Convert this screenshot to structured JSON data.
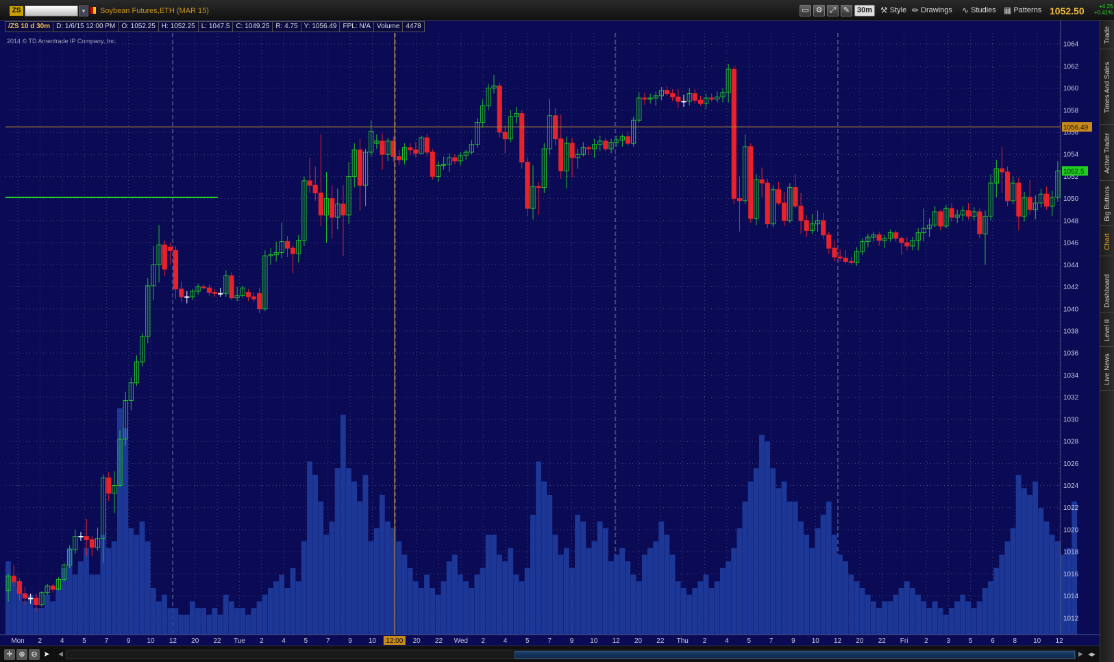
{
  "titlebar": {
    "symbol_badge": "ZS",
    "symbol_input": "",
    "description": "Soybean Futures,ETH (MAR 15)",
    "aggregation": "30m",
    "style_label": "Style",
    "drawings_label": "Drawings",
    "studies_label": "Studies",
    "patterns_label": "Patterns",
    "last_price": "1052.50",
    "net_change": "+4.25",
    "pct_change": "+0.41%"
  },
  "infobar": {
    "symbol_period": "/ZS 10 d 30m",
    "date": "D: 1/6/15 12:00 PM",
    "open": "O: 1052.25",
    "high": "H: 1052.25",
    "low": "L: 1047.5",
    "close": "C: 1049.25",
    "range": "R: 4.75",
    "y": "Y: 1056.49",
    "fpl": "FPL: N/A",
    "volume_label": "Volume",
    "volume_value": "4478"
  },
  "copyright": "2014 © TD Ameritrade IP Company, Inc.",
  "side_tabs": [
    "Trade",
    "Times And Sales",
    "Active Trader",
    "Big Buttons",
    "Chart",
    "Dashboard",
    "Level II",
    "Live News"
  ],
  "side_active": "Chart",
  "colors": {
    "background": "#0a0a55",
    "up": "#22c22a",
    "down": "#e8222a",
    "volume": "#1e3a9a",
    "grid": "#4a4a88",
    "axis_text": "#c9c9d9",
    "cursor": "#b58a2e",
    "price_badge": "#22cc22"
  },
  "chart_data": {
    "type": "candlestick",
    "ylim": [
      1010.5,
      1065
    ],
    "y_ticks": [
      1012,
      1014,
      1016,
      1018,
      1020,
      1022,
      1024,
      1026,
      1028,
      1030,
      1032,
      1034,
      1036,
      1038,
      1040,
      1042,
      1044,
      1046,
      1048,
      1050,
      1052,
      1054,
      1056,
      1058,
      1060,
      1062,
      1064
    ],
    "x_labels": [
      "Mon",
      "2",
      "4",
      "5",
      "7",
      "9",
      "10",
      "12",
      "20",
      "22",
      "Tue",
      "2",
      "4",
      "5",
      "7",
      "9",
      "10",
      "12:00",
      "20",
      "22",
      "Wed",
      "2",
      "4",
      "5",
      "7",
      "9",
      "10",
      "12",
      "20",
      "22",
      "Thu",
      "2",
      "4",
      "5",
      "7",
      "9",
      "10",
      "12",
      "20",
      "22",
      "Fri",
      "2",
      "3",
      "5",
      "6",
      "8",
      "10",
      "12"
    ],
    "cursor_price": "1056.49",
    "last_price": "1052.5",
    "cursor_x_label": "12:00",
    "horizontal_line_price": 1050.1,
    "candles": [
      [
        1014.5,
        1016.0,
        1013.5,
        1015.8
      ],
      [
        1015.8,
        1016.8,
        1014.9,
        1015.3
      ],
      [
        1015.3,
        1015.6,
        1013.6,
        1014.2
      ],
      [
        1014.2,
        1014.8,
        1013.2,
        1013.8
      ],
      [
        1013.8,
        1014.2,
        1013.3,
        1013.8
      ],
      [
        1013.8,
        1014.2,
        1012.6,
        1013.2
      ],
      [
        1013.2,
        1014.4,
        1013.0,
        1014.3
      ],
      [
        1014.3,
        1015.1,
        1014.1,
        1014.9
      ],
      [
        1014.9,
        1015.1,
        1014.3,
        1014.6
      ],
      [
        1014.6,
        1015.7,
        1014.5,
        1015.5
      ],
      [
        1015.5,
        1017.0,
        1015.3,
        1016.8
      ],
      [
        1016.8,
        1018.6,
        1016.5,
        1018.2
      ],
      [
        1018.2,
        1020.0,
        1017.8,
        1019.4
      ],
      [
        1019.4,
        1019.8,
        1019.0,
        1019.4
      ],
      [
        1019.4,
        1021.0,
        1017.6,
        1019.1
      ],
      [
        1019.1,
        1019.4,
        1017.6,
        1018.4
      ],
      [
        1018.4,
        1020.2,
        1018.1,
        1019.2
      ],
      [
        1019.2,
        1025.0,
        1017.0,
        1024.7
      ],
      [
        1024.7,
        1025.2,
        1022.6,
        1023.3
      ],
      [
        1023.3,
        1025.3,
        1021.5,
        1024.0
      ],
      [
        1024.0,
        1029.0,
        1023.9,
        1028.2
      ],
      [
        1028.2,
        1032.5,
        1027.6,
        1031.7
      ],
      [
        1031.7,
        1033.8,
        1030.8,
        1033.3
      ],
      [
        1033.3,
        1035.8,
        1033.0,
        1035.2
      ],
      [
        1035.2,
        1037.8,
        1034.8,
        1037.5
      ],
      [
        1037.5,
        1042.8,
        1036.9,
        1042.1
      ],
      [
        1042.1,
        1045.7,
        1040.8,
        1044.0
      ],
      [
        1044.0,
        1047.6,
        1042.4,
        1045.8
      ],
      [
        1045.8,
        1046.2,
        1043.0,
        1043.6
      ],
      [
        1045.6,
        1046.0,
        1044.0,
        1045.3
      ],
      [
        1045.3,
        1045.7,
        1040.9,
        1041.8
      ],
      [
        1041.8,
        1042.5,
        1040.6,
        1041.1
      ],
      [
        1041.1,
        1041.6,
        1040.5,
        1041.1
      ],
      [
        1041.1,
        1041.8,
        1040.8,
        1041.6
      ],
      [
        1041.6,
        1042.3,
        1041.3,
        1042.0
      ],
      [
        1042.0,
        1042.2,
        1041.8,
        1041.9
      ],
      [
        1041.9,
        1042.2,
        1041.2,
        1041.5
      ],
      [
        1041.5,
        1041.8,
        1041.1,
        1041.4
      ],
      [
        1041.4,
        1041.9,
        1041.1,
        1041.4
      ],
      [
        1041.4,
        1043.5,
        1041.1,
        1043.0
      ],
      [
        1043.0,
        1043.3,
        1040.8,
        1041.0
      ],
      [
        1041.0,
        1042.0,
        1040.7,
        1041.2
      ],
      [
        1041.2,
        1042.1,
        1041.0,
        1041.9
      ],
      [
        1041.5,
        1041.8,
        1040.7,
        1041.1
      ],
      [
        1041.1,
        1041.5,
        1040.6,
        1040.9
      ],
      [
        1041.4,
        1041.9,
        1039.6,
        1040.0
      ],
      [
        1040.0,
        1045.3,
        1039.8,
        1044.8
      ],
      [
        1044.8,
        1045.5,
        1044.0,
        1044.9
      ],
      [
        1044.9,
        1046.1,
        1044.3,
        1045.1
      ],
      [
        1045.1,
        1047.8,
        1044.6,
        1046.1
      ],
      [
        1046.1,
        1046.6,
        1044.7,
        1045.5
      ],
      [
        1045.5,
        1045.8,
        1043.2,
        1045.0
      ],
      [
        1045.0,
        1046.7,
        1044.2,
        1046.2
      ],
      [
        1046.2,
        1052.0,
        1045.7,
        1051.6
      ],
      [
        1051.6,
        1053.7,
        1050.5,
        1051.2
      ],
      [
        1051.2,
        1052.9,
        1049.8,
        1050.5
      ],
      [
        1050.5,
        1055.8,
        1047.5,
        1048.5
      ],
      [
        1048.5,
        1052.4,
        1046.0,
        1050.0
      ],
      [
        1050.0,
        1051.2,
        1046.4,
        1048.3
      ],
      [
        1048.3,
        1050.9,
        1047.2,
        1049.5
      ],
      [
        1049.5,
        1051.2,
        1044.8,
        1048.5
      ],
      [
        1048.5,
        1053.3,
        1047.7,
        1052.0
      ],
      [
        1052.0,
        1055.0,
        1051.0,
        1054.4
      ],
      [
        1054.4,
        1055.4,
        1048.9,
        1051.2
      ],
      [
        1051.2,
        1054.5,
        1049.3,
        1054.2
      ],
      [
        1054.2,
        1057.1,
        1053.8,
        1056.1
      ],
      [
        1055.0,
        1055.8,
        1054.5,
        1055.2
      ],
      [
        1055.2,
        1055.9,
        1052.6,
        1054.0
      ],
      [
        1054.0,
        1055.5,
        1053.4,
        1055.2
      ],
      [
        1055.2,
        1055.6,
        1053.3,
        1053.8
      ],
      [
        1053.8,
        1054.4,
        1053.0,
        1053.5
      ],
      [
        1053.5,
        1055.0,
        1053.1,
        1054.6
      ],
      [
        1054.6,
        1055.0,
        1053.9,
        1054.4
      ],
      [
        1054.4,
        1055.1,
        1053.7,
        1054.1
      ],
      [
        1054.1,
        1055.7,
        1054.0,
        1055.5
      ],
      [
        1055.5,
        1055.8,
        1053.8,
        1054.2
      ],
      [
        1054.2,
        1054.5,
        1051.7,
        1052.0
      ],
      [
        1052.0,
        1053.4,
        1051.5,
        1053.0
      ],
      [
        1053.0,
        1053.8,
        1052.6,
        1053.1
      ],
      [
        1053.1,
        1054.1,
        1052.4,
        1053.7
      ],
      [
        1053.7,
        1054.0,
        1053.1,
        1053.4
      ],
      [
        1053.4,
        1054.2,
        1053.0,
        1053.9
      ],
      [
        1053.9,
        1054.4,
        1053.5,
        1054.2
      ],
      [
        1054.2,
        1055.3,
        1054.0,
        1054.9
      ],
      [
        1054.9,
        1057.3,
        1054.6,
        1056.9
      ],
      [
        1056.9,
        1059.0,
        1056.4,
        1058.4
      ],
      [
        1058.4,
        1060.4,
        1058.0,
        1060.0
      ],
      [
        1060.0,
        1061.2,
        1059.5,
        1060.2
      ],
      [
        1060.2,
        1060.5,
        1055.5,
        1056.0
      ],
      [
        1056.0,
        1056.6,
        1054.1,
        1055.4
      ],
      [
        1055.4,
        1058.0,
        1055.1,
        1057.4
      ],
      [
        1057.4,
        1058.3,
        1056.8,
        1057.7
      ],
      [
        1057.7,
        1058.0,
        1052.7,
        1053.3
      ],
      [
        1053.3,
        1053.7,
        1048.4,
        1049.1
      ],
      [
        1049.1,
        1053.0,
        1048.1,
        1051.1
      ],
      [
        1051.1,
        1051.5,
        1048.5,
        1051.0
      ],
      [
        1051.0,
        1055.0,
        1050.5,
        1054.5
      ],
      [
        1054.5,
        1059.0,
        1054.0,
        1057.5
      ],
      [
        1057.5,
        1058.2,
        1054.8,
        1055.4
      ],
      [
        1055.4,
        1057.6,
        1051.8,
        1052.5
      ],
      [
        1052.5,
        1055.6,
        1050.9,
        1055.0
      ],
      [
        1055.0,
        1055.5,
        1051.9,
        1053.7
      ],
      [
        1053.7,
        1054.5,
        1052.7,
        1054.0
      ],
      [
        1054.0,
        1055.1,
        1053.8,
        1054.6
      ],
      [
        1054.6,
        1054.8,
        1053.9,
        1054.5
      ],
      [
        1054.5,
        1055.4,
        1053.7,
        1054.9
      ],
      [
        1054.9,
        1055.7,
        1054.3,
        1055.2
      ],
      [
        1055.2,
        1055.5,
        1054.3,
        1054.5
      ],
      [
        1054.5,
        1055.4,
        1054.1,
        1055.1
      ],
      [
        1055.1,
        1055.7,
        1054.7,
        1055.3
      ],
      [
        1055.3,
        1055.8,
        1054.7,
        1055.6
      ],
      [
        1055.6,
        1056.1,
        1054.8,
        1055.0
      ],
      [
        1055.0,
        1057.4,
        1054.7,
        1057.1
      ],
      [
        1057.1,
        1059.6,
        1056.9,
        1059.1
      ],
      [
        1059.1,
        1059.6,
        1058.5,
        1059.0
      ],
      [
        1059.0,
        1059.5,
        1058.6,
        1059.1
      ],
      [
        1059.1,
        1059.7,
        1058.4,
        1059.3
      ],
      [
        1059.3,
        1060.1,
        1058.9,
        1059.8
      ],
      [
        1059.8,
        1060.2,
        1059.3,
        1059.5
      ],
      [
        1059.5,
        1059.9,
        1058.8,
        1059.2
      ],
      [
        1059.2,
        1059.9,
        1058.2,
        1058.8
      ],
      [
        1058.8,
        1059.4,
        1058.3,
        1058.8
      ],
      [
        1058.8,
        1060.0,
        1058.4,
        1059.5
      ],
      [
        1059.5,
        1059.9,
        1058.6,
        1058.9
      ],
      [
        1058.9,
        1059.3,
        1058.4,
        1058.6
      ],
      [
        1058.6,
        1059.5,
        1058.1,
        1059.1
      ],
      [
        1059.1,
        1059.5,
        1058.8,
        1059.0
      ],
      [
        1059.0,
        1059.7,
        1058.7,
        1059.2
      ],
      [
        1059.2,
        1060.0,
        1058.7,
        1059.6
      ],
      [
        1059.6,
        1062.2,
        1058.7,
        1061.7
      ],
      [
        1061.7,
        1062.0,
        1049.5,
        1050.0
      ],
      [
        1050.0,
        1052.0,
        1047.0,
        1049.8
      ],
      [
        1049.8,
        1055.8,
        1049.5,
        1054.7
      ],
      [
        1054.7,
        1055.0,
        1047.8,
        1048.2
      ],
      [
        1048.2,
        1052.2,
        1047.6,
        1051.7
      ],
      [
        1051.7,
        1052.8,
        1050.1,
        1051.4
      ],
      [
        1051.4,
        1051.8,
        1047.3,
        1047.7
      ],
      [
        1047.7,
        1051.2,
        1047.4,
        1050.8
      ],
      [
        1050.8,
        1051.5,
        1049.4,
        1049.6
      ],
      [
        1049.6,
        1050.6,
        1047.5,
        1048.0
      ],
      [
        1048.0,
        1051.4,
        1047.8,
        1051.0
      ],
      [
        1051.0,
        1052.2,
        1049.1,
        1049.3
      ],
      [
        1049.3,
        1050.5,
        1046.8,
        1048.0
      ],
      [
        1048.0,
        1048.5,
        1046.5,
        1047.1
      ],
      [
        1047.1,
        1048.6,
        1046.8,
        1047.7
      ],
      [
        1047.7,
        1048.9,
        1047.0,
        1048.0
      ],
      [
        1048.0,
        1048.7,
        1046.3,
        1046.7
      ],
      [
        1046.7,
        1047.0,
        1045.0,
        1045.5
      ],
      [
        1045.5,
        1046.2,
        1044.3,
        1044.7
      ],
      [
        1044.7,
        1045.4,
        1044.3,
        1044.6
      ],
      [
        1044.6,
        1045.3,
        1044.1,
        1044.3
      ],
      [
        1044.3,
        1044.7,
        1044.0,
        1044.2
      ],
      [
        1044.2,
        1045.6,
        1043.9,
        1045.2
      ],
      [
        1045.2,
        1046.4,
        1044.9,
        1046.1
      ],
      [
        1046.1,
        1046.8,
        1045.6,
        1046.5
      ],
      [
        1046.5,
        1047.0,
        1046.1,
        1046.7
      ],
      [
        1046.7,
        1047.0,
        1045.7,
        1046.2
      ],
      [
        1046.2,
        1046.7,
        1045.5,
        1046.4
      ],
      [
        1046.4,
        1047.2,
        1046.1,
        1046.9
      ],
      [
        1046.9,
        1047.1,
        1046.1,
        1046.4
      ],
      [
        1046.4,
        1046.6,
        1044.9,
        1046.0
      ],
      [
        1046.0,
        1046.5,
        1045.3,
        1045.7
      ],
      [
        1045.7,
        1046.5,
        1045.3,
        1046.2
      ],
      [
        1046.2,
        1047.3,
        1045.3,
        1046.9
      ],
      [
        1046.9,
        1049.1,
        1046.1,
        1047.3
      ],
      [
        1047.3,
        1048.2,
        1046.5,
        1047.6
      ],
      [
        1047.6,
        1049.3,
        1047.4,
        1048.8
      ],
      [
        1048.8,
        1049.0,
        1047.1,
        1047.5
      ],
      [
        1047.5,
        1049.4,
        1047.3,
        1049.1
      ],
      [
        1049.1,
        1049.6,
        1047.9,
        1048.3
      ],
      [
        1048.3,
        1049.0,
        1047.8,
        1048.5
      ],
      [
        1048.5,
        1049.3,
        1048.0,
        1048.9
      ],
      [
        1048.9,
        1049.6,
        1048.1,
        1048.4
      ],
      [
        1048.4,
        1049.2,
        1048.0,
        1048.8
      ],
      [
        1048.8,
        1049.1,
        1046.4,
        1046.8
      ],
      [
        1046.8,
        1048.9,
        1044.0,
        1048.4
      ],
      [
        1048.4,
        1052.2,
        1048.0,
        1051.4
      ],
      [
        1051.4,
        1053.5,
        1050.1,
        1052.7
      ],
      [
        1052.7,
        1054.7,
        1050.5,
        1052.4
      ],
      [
        1052.4,
        1052.9,
        1049.3,
        1049.8
      ],
      [
        1049.8,
        1052.0,
        1049.5,
        1051.4
      ],
      [
        1051.4,
        1051.9,
        1047.1,
        1048.4
      ],
      [
        1048.4,
        1050.6,
        1047.9,
        1050.1
      ],
      [
        1050.1,
        1051.7,
        1048.5,
        1049.0
      ],
      [
        1049.0,
        1050.3,
        1048.1,
        1049.6
      ],
      [
        1049.6,
        1050.9,
        1049.2,
        1050.4
      ],
      [
        1050.4,
        1051.1,
        1049.0,
        1049.3
      ],
      [
        1049.3,
        1050.7,
        1048.4,
        1050.1
      ],
      [
        1050.1,
        1053.4,
        1049.7,
        1052.5
      ]
    ],
    "volumes": [
      1100,
      800,
      700,
      500,
      600,
      400,
      400,
      600,
      500,
      700,
      1000,
      1300,
      900,
      1100,
      1300,
      900,
      900,
      1500,
      1300,
      1400,
      3400,
      3100,
      1600,
      1500,
      1700,
      1400,
      700,
      500,
      600,
      400,
      400,
      300,
      300,
      500,
      400,
      400,
      300,
      400,
      300,
      600,
      500,
      400,
      400,
      300,
      400,
      500,
      600,
      700,
      800,
      900,
      700,
      1000,
      800,
      1400,
      2600,
      2400,
      2000,
      1500,
      1700,
      2500,
      3300,
      2500,
      2300,
      2000,
      2400,
      1400,
      1600,
      2100,
      1700,
      1600,
      1400,
      1200,
      1000,
      800,
      700,
      900,
      700,
      600,
      800,
      1100,
      1200,
      900,
      800,
      700,
      900,
      1000,
      1500,
      1500,
      1200,
      1100,
      1300,
      900,
      800,
      1000,
      1800,
      2600,
      2300,
      2100,
      1500,
      1200,
      1300,
      1000,
      1800,
      1700,
      1300,
      1400,
      1700,
      1600,
      1100,
      1200,
      1300,
      1100,
      900,
      800,
      1200,
      1300,
      1400,
      1700,
      1500,
      1200,
      800,
      700,
      600,
      700,
      800,
      900,
      700,
      800,
      1000,
      1100,
      1300,
      1600,
      2000,
      2300,
      2500,
      3000,
      2900,
      2500,
      2200,
      2300,
      2000,
      2000,
      1700,
      1500,
      1300,
      1600,
      1800,
      2000,
      1500,
      1200,
      1100,
      900,
      800,
      700,
      600,
      500,
      400,
      500,
      500,
      600,
      700,
      800,
      700,
      600,
      500,
      400,
      500,
      400,
      300,
      400,
      500,
      600,
      500,
      400,
      500,
      700,
      800,
      1000,
      1200,
      1400,
      1600,
      2400,
      2200,
      2100,
      2300,
      1900,
      1700,
      1500,
      1400,
      1200,
      1300,
      2000
    ]
  }
}
